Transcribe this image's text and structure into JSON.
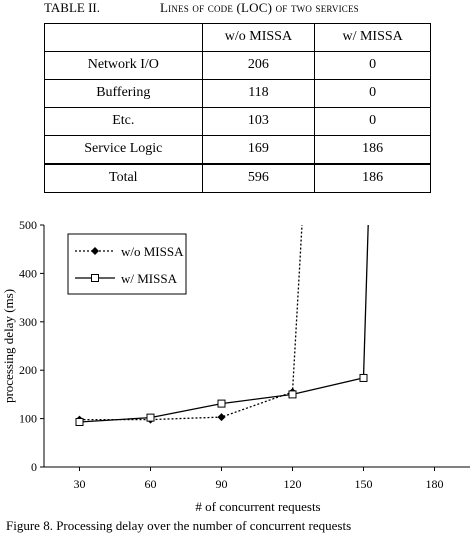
{
  "table": {
    "number": "TABLE II.",
    "title": "Lines of code (LOC) of two services",
    "headers": [
      "",
      "w/o MISSA",
      "w/ MISSA"
    ],
    "rows": [
      [
        "Network I/O",
        "206",
        "0"
      ],
      [
        "Buffering",
        "118",
        "0"
      ],
      [
        "Etc.",
        "103",
        "0"
      ],
      [
        "Service Logic",
        "169",
        "186"
      ],
      [
        "Total",
        "596",
        "186"
      ]
    ]
  },
  "chart_data": {
    "type": "line",
    "xlabel": "# of concurrent requests",
    "ylabel": "processing delay (ms)",
    "xlim": [
      15,
      195
    ],
    "ylim": [
      0,
      500
    ],
    "xticks": [
      30,
      60,
      90,
      120,
      150,
      180
    ],
    "yticks": [
      0,
      100,
      200,
      300,
      400,
      500
    ],
    "legend_position": "top-left",
    "grid": false,
    "series": [
      {
        "name": "w/o MISSA",
        "style": "dotted",
        "marker": "diamond",
        "points": [
          [
            30,
            98
          ],
          [
            60,
            98
          ],
          [
            90,
            103
          ],
          [
            120,
            155
          ]
        ],
        "tail": [
          [
            120,
            155
          ],
          [
            124,
            500
          ]
        ]
      },
      {
        "name": "w/ MISSA",
        "style": "solid",
        "marker": "square",
        "points": [
          [
            30,
            93
          ],
          [
            60,
            102
          ],
          [
            90,
            131
          ],
          [
            120,
            150
          ],
          [
            150,
            184
          ]
        ],
        "tail": [
          [
            150,
            184
          ],
          [
            152,
            500
          ]
        ]
      }
    ]
  },
  "figure_caption": "Figure 8. Processing delay over the number of concurrent requests"
}
